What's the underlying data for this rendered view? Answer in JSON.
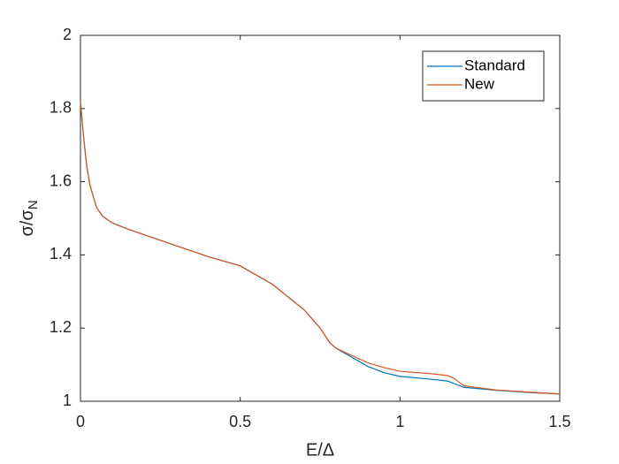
{
  "chart_data": {
    "type": "line",
    "x_label": "E/Δ",
    "y_label": {
      "text": "σ/σ",
      "subscript": "N"
    },
    "x": [
      0,
      0.01,
      0.02,
      0.03,
      0.05,
      0.07,
      0.1,
      0.15,
      0.2,
      0.3,
      0.4,
      0.5,
      0.6,
      0.7,
      0.75,
      0.78,
      0.8,
      0.85,
      0.9,
      0.95,
      1.0,
      1.1,
      1.15,
      1.17,
      1.2,
      1.3,
      1.4,
      1.5
    ],
    "series": [
      {
        "name": "Standard",
        "color": "#0072bd",
        "values": [
          1.819,
          1.72,
          1.64,
          1.59,
          1.53,
          1.505,
          1.487,
          1.47,
          1.455,
          1.425,
          1.395,
          1.37,
          1.32,
          1.25,
          1.2,
          1.16,
          1.145,
          1.12,
          1.095,
          1.078,
          1.068,
          1.06,
          1.055,
          1.048,
          1.038,
          1.03,
          1.024,
          1.02
        ]
      },
      {
        "name": "New",
        "color": "#d95319",
        "values": [
          1.819,
          1.72,
          1.64,
          1.59,
          1.53,
          1.505,
          1.487,
          1.47,
          1.455,
          1.425,
          1.395,
          1.37,
          1.32,
          1.25,
          1.2,
          1.16,
          1.145,
          1.125,
          1.105,
          1.092,
          1.082,
          1.075,
          1.07,
          1.062,
          1.042,
          1.031,
          1.025,
          1.02
        ]
      }
    ],
    "xlim": [
      0,
      1.5
    ],
    "xticks": [
      0,
      0.5,
      1,
      1.5
    ],
    "ylim": [
      1,
      2
    ],
    "yticks": [
      1,
      1.2,
      1.4,
      1.6,
      1.8,
      2
    ],
    "legend": "top-right",
    "grid": false
  }
}
